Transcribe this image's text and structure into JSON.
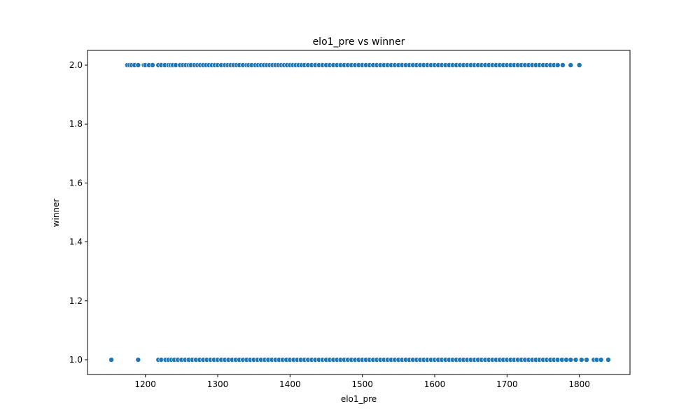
{
  "chart_data": {
    "type": "scatter",
    "title": "elo1_pre vs winner",
    "xlabel": "elo1_pre",
    "ylabel": "winner",
    "xlim": [
      1120,
      1870
    ],
    "ylim": [
      0.95,
      2.05
    ],
    "xticks": [
      1200,
      1300,
      1400,
      1500,
      1600,
      1700,
      1800
    ],
    "xtick_labels": [
      "1200",
      "1300",
      "1400",
      "1500",
      "1600",
      "1700",
      "1800"
    ],
    "yticks": [
      1.0,
      1.2,
      1.4,
      1.6,
      1.8,
      2.0
    ],
    "ytick_labels": [
      "1.0",
      "1.2",
      "1.4",
      "1.6",
      "1.8",
      "2.0"
    ],
    "grid": false,
    "legend": "none",
    "point_color": "#1f77b4",
    "series": [
      {
        "y": 2.0,
        "x": [
          1175,
          1178,
          1181,
          1185,
          1190,
          1198,
          1200,
          1205,
          1210,
          1218,
          1222,
          1227,
          1232,
          1235,
          1238,
          1242,
          1248,
          1252,
          1256,
          1260,
          1263,
          1268,
          1272,
          1276,
          1280,
          1284,
          1288,
          1292,
          1296,
          1300,
          1305,
          1310,
          1314,
          1318,
          1322,
          1326,
          1330,
          1335,
          1340,
          1343,
          1347,
          1352,
          1356,
          1360,
          1364,
          1368,
          1372,
          1376,
          1380,
          1384,
          1388,
          1392,
          1396,
          1400,
          1404,
          1408,
          1412,
          1416,
          1420,
          1425,
          1430,
          1435,
          1440,
          1445,
          1450,
          1455,
          1460,
          1465,
          1470,
          1475,
          1480,
          1485,
          1490,
          1495,
          1500,
          1505,
          1510,
          1515,
          1520,
          1525,
          1530,
          1535,
          1540,
          1545,
          1550,
          1555,
          1560,
          1565,
          1570,
          1575,
          1580,
          1585,
          1590,
          1595,
          1600,
          1605,
          1610,
          1615,
          1620,
          1625,
          1630,
          1635,
          1640,
          1645,
          1650,
          1655,
          1660,
          1665,
          1670,
          1675,
          1680,
          1685,
          1690,
          1695,
          1700,
          1705,
          1710,
          1715,
          1720,
          1725,
          1730,
          1735,
          1740,
          1745,
          1750,
          1755,
          1760,
          1765,
          1770,
          1777,
          1788,
          1800
        ]
      },
      {
        "y": 1.0,
        "x": [
          1153,
          1190,
          1218,
          1222,
          1228,
          1232,
          1236,
          1240,
          1245,
          1250,
          1255,
          1260,
          1265,
          1270,
          1275,
          1280,
          1285,
          1290,
          1295,
          1300,
          1305,
          1310,
          1315,
          1320,
          1325,
          1330,
          1335,
          1340,
          1345,
          1350,
          1355,
          1360,
          1365,
          1370,
          1375,
          1380,
          1385,
          1390,
          1395,
          1400,
          1405,
          1410,
          1415,
          1420,
          1425,
          1430,
          1435,
          1440,
          1445,
          1450,
          1455,
          1460,
          1465,
          1470,
          1475,
          1480,
          1485,
          1490,
          1495,
          1500,
          1505,
          1510,
          1515,
          1520,
          1525,
          1530,
          1535,
          1540,
          1545,
          1550,
          1555,
          1560,
          1565,
          1570,
          1575,
          1580,
          1585,
          1590,
          1595,
          1600,
          1605,
          1610,
          1615,
          1620,
          1625,
          1630,
          1635,
          1640,
          1645,
          1650,
          1655,
          1660,
          1665,
          1670,
          1675,
          1680,
          1685,
          1690,
          1695,
          1700,
          1705,
          1710,
          1715,
          1720,
          1725,
          1730,
          1735,
          1740,
          1745,
          1750,
          1755,
          1760,
          1765,
          1770,
          1776,
          1782,
          1788,
          1795,
          1803,
          1810,
          1820,
          1824,
          1830,
          1840
        ]
      }
    ]
  }
}
